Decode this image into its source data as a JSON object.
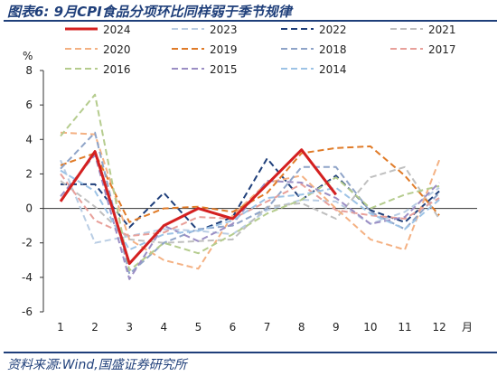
{
  "header": {
    "title": "图表6:  9月CPI食品分项环比同样弱于季节规律"
  },
  "footer": {
    "source": "资料来源:Wind,国盛证券研究所"
  },
  "chart_data": {
    "type": "line",
    "title": "",
    "ylabel": "%",
    "xlabel": "月",
    "ylim": [
      -6,
      8
    ],
    "yticks": [
      -6,
      -4,
      -2,
      0,
      2,
      4,
      6,
      8
    ],
    "categories": [
      "1",
      "2",
      "3",
      "4",
      "5",
      "6",
      "7",
      "8",
      "9",
      "10",
      "11",
      "12"
    ],
    "grid": false,
    "legend": "top",
    "series": [
      {
        "name": "2024",
        "color": "#d42020",
        "style": "solid",
        "values": [
          0.4,
          3.3,
          -3.2,
          -1.0,
          0.0,
          -0.6,
          1.4,
          3.4,
          0.8,
          null,
          null,
          null
        ]
      },
      {
        "name": "2023",
        "color": "#b9cde4",
        "style": "dashed",
        "values": [
          2.8,
          -2.0,
          -1.6,
          -1.2,
          -1.3,
          -1.5,
          -0.1,
          0.5,
          0.4,
          -0.9,
          -0.2,
          1.2
        ]
      },
      {
        "name": "2022",
        "color": "#1f3f7a",
        "style": "dashed",
        "values": [
          1.4,
          1.4,
          -1.1,
          0.9,
          -1.3,
          -0.5,
          2.9,
          0.5,
          1.9,
          -0.1,
          -0.8,
          1.0
        ]
      },
      {
        "name": "2021",
        "color": "#bfbfbf",
        "style": "dashed",
        "values": [
          1.6,
          0.1,
          -1.8,
          -2.0,
          -1.9,
          -1.8,
          0.1,
          0.3,
          -0.6,
          1.8,
          2.4,
          -0.6
        ]
      },
      {
        "name": "2020",
        "color": "#f4b183",
        "style": "dashed",
        "values": [
          4.4,
          4.3,
          -1.8,
          -3.0,
          -3.5,
          -0.4,
          1.5,
          1.9,
          0.0,
          -1.8,
          -2.4,
          2.8
        ]
      },
      {
        "name": "2019",
        "color": "#e07b28",
        "style": "dashed",
        "values": [
          2.5,
          3.2,
          -0.8,
          0.0,
          0.1,
          -0.2,
          0.9,
          3.2,
          3.5,
          3.6,
          1.9,
          -0.4
        ]
      },
      {
        "name": "2018",
        "color": "#8fa4c8",
        "style": "dashed",
        "values": [
          2.3,
          4.4,
          -3.8,
          -2.0,
          -1.2,
          -1.0,
          0.0,
          2.4,
          2.4,
          -0.2,
          -1.2,
          0.9
        ]
      },
      {
        "name": "2017",
        "color": "#e8a09a",
        "style": "dashed",
        "values": [
          2.0,
          -0.7,
          -1.6,
          -1.4,
          -0.5,
          -0.6,
          0.4,
          1.4,
          -0.1,
          -0.4,
          -0.6,
          0.6
        ]
      },
      {
        "name": "2016",
        "color": "#b5cc8e",
        "style": "dashed",
        "values": [
          4.2,
          6.6,
          -3.6,
          -2.0,
          -2.6,
          -1.5,
          -0.3,
          0.5,
          1.8,
          0.0,
          0.8,
          1.3
        ]
      },
      {
        "name": "2015",
        "color": "#9b8ec4",
        "style": "dashed",
        "values": [
          0.7,
          3.1,
          -4.1,
          -1.0,
          -1.9,
          -0.9,
          1.6,
          1.5,
          0.6,
          -0.9,
          -0.5,
          1.5
        ]
      },
      {
        "name": "2014",
        "color": "#9dc3e6",
        "style": "dashed",
        "values": [
          2.2,
          1.0,
          -2.4,
          -1.5,
          -1.3,
          -0.7,
          0.6,
          0.8,
          1.2,
          -0.3,
          -1.2,
          0.5
        ]
      }
    ]
  }
}
